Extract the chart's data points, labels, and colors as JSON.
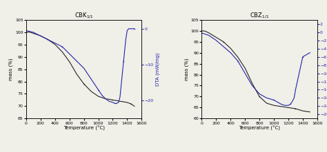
{
  "fig_width": 4.74,
  "fig_height": 2.21,
  "dpi": 100,
  "background_color": "#f0efe8",
  "plots": [
    {
      "title": "CBK$_{1/1}$",
      "mass_x": [
        0,
        50,
        100,
        150,
        200,
        300,
        400,
        500,
        600,
        700,
        800,
        900,
        1000,
        1100,
        1150,
        1200,
        1250,
        1300,
        1350,
        1400,
        1450,
        1500
      ],
      "mass_y": [
        100,
        100,
        99.5,
        99,
        98.5,
        97,
        95,
        92,
        88,
        83,
        79,
        76,
        74,
        73,
        72.8,
        72.5,
        72.3,
        72,
        71.8,
        71.5,
        71,
        70
      ],
      "dta_x": [
        0,
        100,
        200,
        300,
        400,
        500,
        600,
        700,
        800,
        900,
        1000,
        1050,
        1100,
        1150,
        1200,
        1230,
        1250,
        1280,
        1300,
        1320,
        1350,
        1380,
        1400,
        1420,
        1450,
        1500
      ],
      "dta_y": [
        -0.5,
        -1,
        -2,
        -3,
        -4,
        -5,
        -7,
        -9,
        -11,
        -14,
        -17,
        -18.5,
        -19.5,
        -20.2,
        -20.5,
        -20.8,
        -20.8,
        -20.5,
        -19,
        -15,
        -9,
        -3,
        -0.5,
        0,
        0,
        0
      ],
      "mass_ylim": [
        65,
        105
      ],
      "dta_ylim": [
        -25,
        2.5
      ],
      "dta_yticks": [
        0,
        -10,
        -20
      ],
      "mass_yticks": [
        65,
        70,
        75,
        80,
        85,
        90,
        95,
        100,
        105
      ],
      "xticks": [
        0,
        200,
        400,
        600,
        800,
        1000,
        1200,
        1400,
        1600
      ]
    },
    {
      "title": "CBZ$_{1/1}$",
      "mass_x": [
        0,
        50,
        100,
        150,
        200,
        300,
        400,
        500,
        600,
        700,
        800,
        900,
        1000,
        1100,
        1200,
        1300,
        1400,
        1500
      ],
      "mass_y": [
        100,
        99.8,
        99,
        98,
        97,
        95,
        92,
        88,
        83,
        76,
        70,
        67,
        66,
        65.5,
        65,
        64.5,
        63.5,
        63
      ],
      "dta_x": [
        0,
        100,
        200,
        300,
        400,
        500,
        600,
        700,
        800,
        900,
        1000,
        1050,
        1100,
        1150,
        1200,
        1230,
        1250,
        1280,
        1300,
        1350,
        1400,
        1450,
        1500
      ],
      "dta_y": [
        -0.2,
        -0.8,
        -2,
        -3.5,
        -5,
        -7,
        -10,
        -13,
        -15,
        -16,
        -16.5,
        -17,
        -17.5,
        -17.8,
        -17.8,
        -17.5,
        -17,
        -16,
        -14,
        -10,
        -6,
        -5.5,
        -5
      ],
      "mass_ylim": [
        60,
        105
      ],
      "dta_ylim": [
        -21,
        3
      ],
      "dta_yticks": [
        2,
        0,
        -2,
        -4,
        -6,
        -8,
        -10,
        -12,
        -14,
        -16,
        -18,
        -20
      ],
      "mass_yticks": [
        60,
        65,
        70,
        75,
        80,
        85,
        90,
        95,
        100,
        105
      ],
      "xticks": [
        0,
        200,
        400,
        600,
        800,
        1000,
        1200,
        1400,
        1600
      ]
    }
  ],
  "mass_color": "#222222",
  "dta_color": "#2222aa",
  "xlabel": "Temperature (°C)",
  "ylabel_left": "mass (%)",
  "ylabel_right": "DTA (mW/mg)",
  "legend_mass": "Mass %",
  "legend_dta": "DTA (mW/mg)",
  "title_fontsize": 6,
  "label_fontsize": 5,
  "tick_fontsize": 4.5,
  "legend_fontsize": 5
}
